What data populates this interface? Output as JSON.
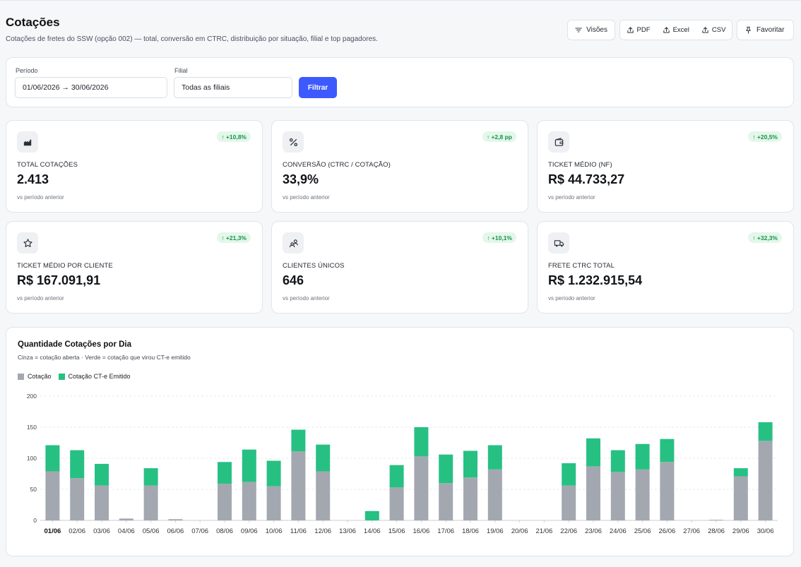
{
  "page": {
    "title": "Cotações",
    "subtitle": "Cotações de fretes do SSW (opção 002) — total, conversão em CTRC, distribuição por situação, filial e top pagadores."
  },
  "toolbar": {
    "views_label": "Visões",
    "pdf_label": "PDF",
    "excel_label": "Excel",
    "csv_label": "CSV",
    "favorite_label": "Favoritar"
  },
  "filters": {
    "period_label": "Período",
    "period_value": "01/06/2026 → 30/06/2026",
    "branch_label": "Filial",
    "branch_value": "Todas as filiais",
    "filter_button": "Filtrar"
  },
  "kpis": [
    {
      "icon": "factory-icon",
      "label": "TOTAL COTAÇÕES",
      "value": "2.413",
      "delta": "↑ +10,8%",
      "sub": "vs período anterior"
    },
    {
      "icon": "percent-icon",
      "label": "CONVERSÃO (CTRC / COTAÇÃO)",
      "value": "33,9%",
      "delta": "↑ +2,8 pp",
      "sub": "vs período anterior"
    },
    {
      "icon": "wallet-icon",
      "label": "TICKET MÉDIO (NF)",
      "value": "R$ 44.733,27",
      "delta": "↑ +20,5%",
      "sub": "vs período anterior"
    },
    {
      "icon": "star-icon",
      "label": "TICKET MÉDIO POR CLIENTE",
      "value": "R$ 167.091,91",
      "delta": "↑ +21,3%",
      "sub": "vs período anterior"
    },
    {
      "icon": "users-icon",
      "label": "CLIENTES ÚNICOS",
      "value": "646",
      "delta": "↑ +10,1%",
      "sub": "vs período anterior"
    },
    {
      "icon": "truck-icon",
      "label": "FRETE CTRC TOTAL",
      "value": "R$ 1.232.915,54",
      "delta": "↑ +32,3%",
      "sub": "vs período anterior"
    }
  ],
  "colors": {
    "accent": "#3d5afe",
    "cotacao": "#a3a8b0",
    "ctrc": "#27c083",
    "badge_text": "#17924a"
  },
  "chart_data": {
    "type": "bar",
    "stacked": true,
    "title": "Quantidade Cotações por Dia",
    "subtitle": "Cinza = cotação aberta · Verde = cotação que virou CT-e emitido",
    "categories": [
      "01/06",
      "02/06",
      "03/06",
      "04/06",
      "05/06",
      "06/06",
      "07/06",
      "08/06",
      "09/06",
      "10/06",
      "11/06",
      "12/06",
      "13/06",
      "14/06",
      "15/06",
      "16/06",
      "17/06",
      "18/06",
      "19/06",
      "20/06",
      "21/06",
      "22/06",
      "23/06",
      "24/06",
      "25/06",
      "26/06",
      "27/06",
      "28/06",
      "29/06",
      "30/06"
    ],
    "series": [
      {
        "name": "Cotação",
        "color": "#a3a8b0",
        "values": [
          79,
          68,
          56,
          3,
          56,
          2,
          0,
          59,
          62,
          55,
          111,
          79,
          0,
          0,
          53,
          103,
          60,
          69,
          82,
          0,
          0,
          56,
          87,
          78,
          82,
          94,
          0,
          1,
          71,
          128
        ]
      },
      {
        "name": "Cotação CT-e Emitido",
        "color": "#27c083",
        "values": [
          42,
          45,
          35,
          0,
          28,
          0,
          0,
          35,
          52,
          41,
          35,
          43,
          0,
          15,
          36,
          47,
          46,
          43,
          39,
          0,
          0,
          36,
          45,
          35,
          41,
          37,
          0,
          0,
          13,
          30
        ]
      }
    ],
    "ylim": [
      0,
      200
    ],
    "yticks": [
      0,
      50,
      100,
      150,
      200
    ],
    "grid": true,
    "legend_position": "top-left"
  }
}
